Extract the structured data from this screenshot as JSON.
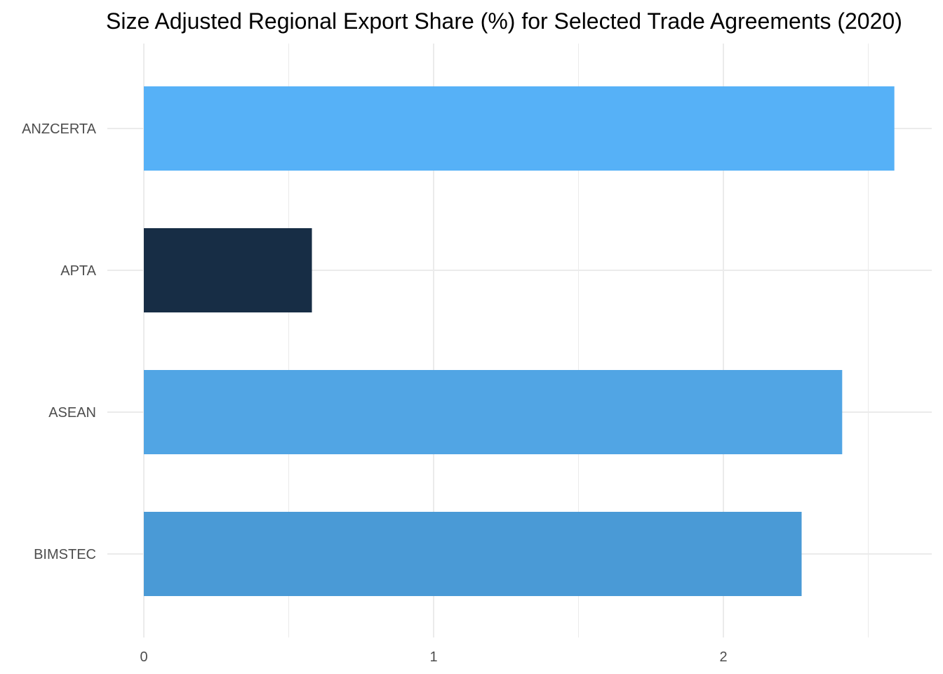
{
  "chart_data": {
    "type": "bar",
    "orientation": "horizontal",
    "title": "Size Adjusted Regional Export Share (%) for Selected Trade Agreements (2020)",
    "xlabel": "",
    "ylabel": "",
    "categories": [
      "ANZCERTA",
      "APTA",
      "ASEAN",
      "BIMSTEC"
    ],
    "values": [
      2.59,
      0.58,
      2.41,
      2.27
    ],
    "colors": [
      "#56b1f7",
      "#172d45",
      "#51a5e4",
      "#4a9ad6"
    ],
    "x_ticks": [
      "0",
      "1",
      "2"
    ],
    "xlim": [
      0,
      2.72
    ],
    "grid": true,
    "legend": "none"
  }
}
